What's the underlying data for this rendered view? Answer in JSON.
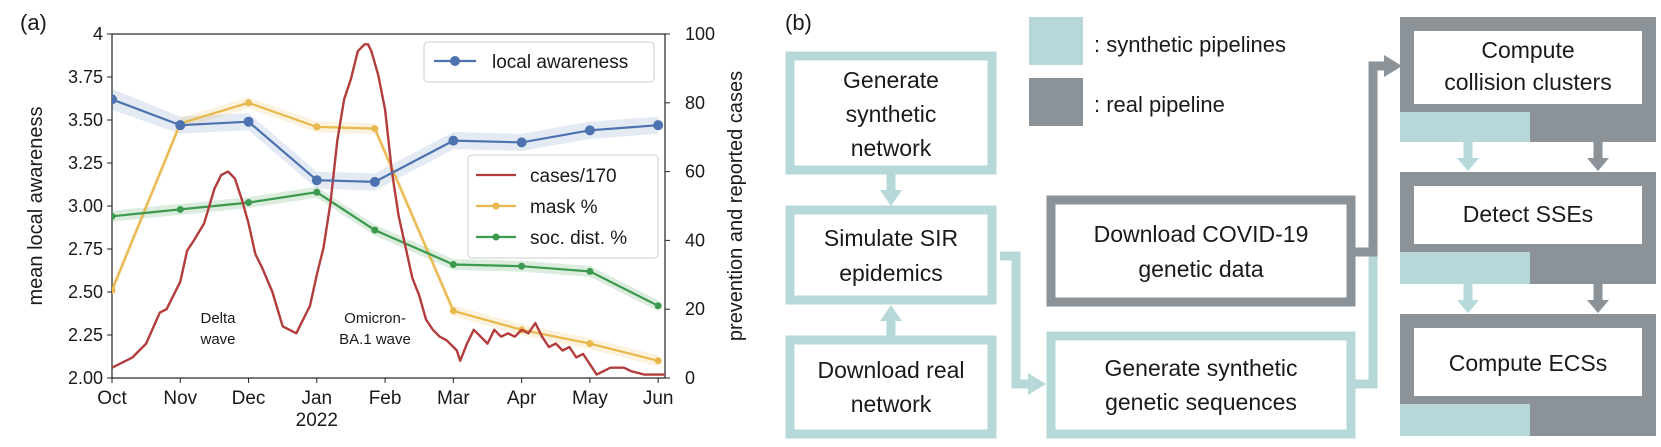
{
  "chart_data": {
    "type": "line",
    "panel_label": "(a)",
    "x_tick_labels": [
      "Oct",
      "Nov",
      "Dec",
      "Jan",
      "Feb",
      "Mar",
      "Apr",
      "May",
      "Jun"
    ],
    "x_sublabel": "2022",
    "xlim": [
      0,
      8.1
    ],
    "left_axis": {
      "label": "mean local awareness",
      "ylim": [
        2.0,
        4.0
      ],
      "ticks": [
        2.0,
        2.25,
        2.5,
        2.75,
        3.0,
        3.25,
        3.5,
        3.75,
        4.0
      ],
      "tick_labels": [
        "2.00",
        "2.25",
        "2.50",
        "2.75",
        "3.00",
        "3.25",
        "3.50",
        "3.75",
        "4"
      ]
    },
    "right_axis": {
      "label": "prevention and reported cases",
      "ylim": [
        0,
        100
      ],
      "ticks": [
        0,
        20,
        40,
        60,
        80,
        100
      ],
      "tick_labels": [
        "0",
        "20",
        "40",
        "60",
        "80",
        "100"
      ]
    },
    "series": [
      {
        "name": "local awareness",
        "axis": "left",
        "color": "#4c72b0",
        "x": [
          0,
          1,
          2,
          3,
          3.85,
          5,
          6,
          7,
          8
        ],
        "values": [
          3.62,
          3.47,
          3.49,
          3.15,
          3.14,
          3.38,
          3.37,
          3.44,
          3.47
        ],
        "band": [
          0.06,
          0.05,
          0.05,
          0.05,
          0.05,
          0.05,
          0.05,
          0.05,
          0.05
        ]
      },
      {
        "name": "mask %",
        "axis": "right",
        "color": "#e8b84b",
        "x": [
          0,
          1,
          2,
          3,
          3.85,
          5,
          6,
          7,
          8
        ],
        "values": [
          25.5,
          74,
          80,
          73,
          72.5,
          19.5,
          14,
          10,
          5
        ]
      },
      {
        "name": "soc. dist. %",
        "axis": "right",
        "color": "#3c9a4e",
        "x": [
          0,
          1,
          2,
          3,
          3.85,
          5,
          6,
          7,
          8
        ],
        "values": [
          47,
          49,
          51,
          54,
          43,
          33,
          32.5,
          31,
          21
        ]
      },
      {
        "name": "cases/170",
        "axis": "right",
        "color": "#b33c3c",
        "x": [
          0,
          0.3,
          0.5,
          0.7,
          0.8,
          1.0,
          1.1,
          1.2,
          1.35,
          1.5,
          1.6,
          1.7,
          1.8,
          1.9,
          2.0,
          2.1,
          2.2,
          2.35,
          2.5,
          2.6,
          2.7,
          2.75,
          2.9,
          3.0,
          3.1,
          3.2,
          3.3,
          3.4,
          3.5,
          3.6,
          3.7,
          3.75,
          3.8,
          3.9,
          4.0,
          4.1,
          4.2,
          4.3,
          4.4,
          4.5,
          4.6,
          4.7,
          4.8,
          4.9,
          5.0,
          5.05,
          5.1,
          5.2,
          5.3,
          5.4,
          5.5,
          5.6,
          5.7,
          5.8,
          5.9,
          6.0,
          6.1,
          6.2,
          6.3,
          6.4,
          6.5,
          6.6,
          6.7,
          6.8,
          6.9,
          7.0,
          7.1,
          7.3,
          7.5,
          7.6,
          7.8,
          8.0,
          8.3
        ],
        "values": [
          3,
          6,
          10,
          19,
          20,
          28,
          37,
          40,
          45,
          55,
          59,
          60,
          58,
          52,
          45,
          36,
          32,
          25,
          15,
          14,
          13,
          15,
          21,
          30,
          38,
          51,
          69,
          81,
          87,
          95,
          97,
          97,
          95,
          88,
          78,
          60,
          47,
          38,
          29,
          24,
          17,
          14,
          12,
          11,
          9,
          8,
          5,
          10,
          14,
          12,
          10,
          14,
          12,
          13,
          12,
          14,
          13,
          16,
          12,
          9,
          10,
          8,
          9,
          6,
          7,
          4,
          1,
          3,
          3,
          2,
          1,
          1,
          1
        ]
      }
    ],
    "annotations": [
      {
        "line1": "Delta",
        "line2": "wave",
        "x": 1.5,
        "y": 2.34
      },
      {
        "line1": "Omicron-",
        "line2": "BA.1 wave",
        "x": 3.92,
        "y": 2.34
      }
    ],
    "legend_top": "local awareness",
    "legend_right": [
      "cases/170",
      "mask %",
      "soc. dist. %"
    ]
  },
  "diagram": {
    "panel_label": "(b)",
    "legend": {
      "synthetic": ": synthetic pipelines",
      "real": ": real pipeline"
    },
    "colors": {
      "synthetic": "#b6d8d9",
      "real": "#8b9399"
    },
    "boxes": {
      "gen_net": [
        "Generate",
        "synthetic",
        "network"
      ],
      "sim_sir": [
        "Simulate SIR",
        "epidemics"
      ],
      "download_net": [
        "Download real",
        "network"
      ],
      "download_covid": [
        "Download COVID-19",
        "genetic data"
      ],
      "gen_seq": [
        "Generate synthetic",
        "genetic sequences"
      ],
      "collision": [
        "Compute",
        "collision clusters"
      ],
      "detect": [
        "Detect SSEs"
      ],
      "ecs": [
        "Compute ECSs"
      ]
    }
  }
}
